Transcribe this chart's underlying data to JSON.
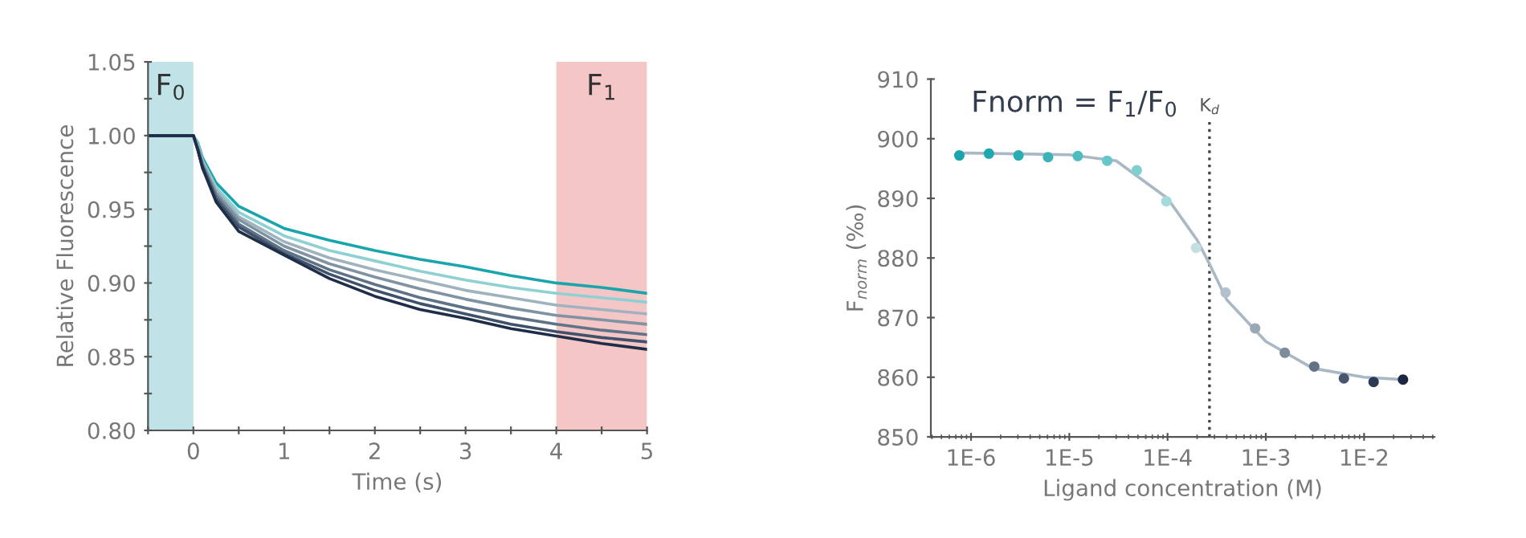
{
  "chart_data": [
    {
      "type": "line",
      "xlabel": "Time (s)",
      "ylabel": "Relative Fluorescence",
      "xlim": [
        -0.5,
        5
      ],
      "ylim": [
        0.8,
        1.05
      ],
      "xticks": [
        {
          "value": -0.5,
          "label": null
        },
        0,
        {
          "value": 0.5,
          "label": null
        },
        1,
        {
          "value": 1.5,
          "label": null
        },
        2,
        {
          "value": 2.5,
          "label": null
        },
        3,
        {
          "value": 3.5,
          "label": null
        },
        4,
        {
          "value": 4.5,
          "label": null
        },
        5
      ],
      "yticks": [
        {
          "value": 0.8,
          "label": "0.80"
        },
        {
          "value": 0.825,
          "label": null
        },
        0.85,
        {
          "value": 0.875,
          "label": null
        },
        {
          "value": 0.9,
          "label": "0.90"
        },
        {
          "value": 0.925,
          "label": null
        },
        0.95,
        {
          "value": 0.975,
          "label": null
        },
        {
          "value": 1,
          "label": "1.00"
        },
        {
          "value": 1.025,
          "label": null
        },
        1.05
      ],
      "x": [
        -0.5,
        0,
        0.05,
        0.1,
        0.25,
        0.5,
        1,
        1.5,
        2,
        2.5,
        3,
        3.5,
        4,
        4.5,
        5
      ],
      "series": [
        {
          "color": "#1aa5ad",
          "values": [
            1,
            1,
            0.995,
            0.985,
            0.968,
            0.952,
            0.937,
            0.929,
            0.922,
            0.916,
            0.911,
            0.905,
            0.9,
            0.897,
            0.893
          ]
        },
        {
          "color": "#8fd0d3",
          "values": [
            1,
            1,
            0.994,
            0.983,
            0.965,
            0.948,
            0.932,
            0.922,
            0.915,
            0.908,
            0.902,
            0.897,
            0.893,
            0.89,
            0.887
          ]
        },
        {
          "color": "#9fb3bf",
          "values": [
            1,
            1,
            0.993,
            0.982,
            0.963,
            0.945,
            0.928,
            0.917,
            0.909,
            0.902,
            0.895,
            0.89,
            0.885,
            0.882,
            0.879
          ]
        },
        {
          "color": "#7f93a3",
          "values": [
            1,
            1,
            0.992,
            0.981,
            0.961,
            0.943,
            0.925,
            0.913,
            0.904,
            0.896,
            0.889,
            0.883,
            0.878,
            0.875,
            0.872
          ]
        },
        {
          "color": "#5f7386",
          "values": [
            1,
            1,
            0.991,
            0.98,
            0.959,
            0.94,
            0.922,
            0.909,
            0.899,
            0.89,
            0.883,
            0.877,
            0.872,
            0.868,
            0.865
          ]
        },
        {
          "color": "#3f526a",
          "values": [
            1,
            1,
            0.99,
            0.979,
            0.957,
            0.938,
            0.92,
            0.906,
            0.895,
            0.886,
            0.879,
            0.872,
            0.867,
            0.863,
            0.86
          ]
        },
        {
          "color": "#1e2e48",
          "values": [
            1,
            1,
            0.99,
            0.978,
            0.955,
            0.935,
            0.919,
            0.903,
            0.891,
            0.882,
            0.876,
            0.869,
            0.864,
            0.859,
            0.855
          ]
        }
      ],
      "bands": [
        {
          "axis": "x",
          "from": -0.5,
          "to": 0,
          "label": "F$_{0}$",
          "color": "#bfe3e6"
        },
        {
          "axis": "x",
          "from": 4,
          "to": 5,
          "label": "F$_{1}$",
          "color": "#f4c6c6"
        }
      ],
      "marker": "none",
      "line_style": "solid",
      "grid": false,
      "legend": false
    },
    {
      "type": "scatter",
      "log": "x",
      "xlabel": "Ligand concentration (M)",
      "ylabel": "F$_{norm}$ (‰)",
      "xlim": [
        3.9e-07,
        0.052
      ],
      "ylim": [
        850,
        910
      ],
      "xticks": [
        {
          "value": 1e-06,
          "label": "1E-6"
        },
        {
          "value": 1e-05,
          "label": "1E-5"
        },
        {
          "value": 0.0001,
          "label": "1E-4"
        },
        {
          "value": 0.001,
          "label": "1E-3"
        },
        {
          "value": 0.01,
          "label": "1E-2"
        }
      ],
      "yticks": [
        850,
        860,
        870,
        880,
        890,
        900,
        910
      ],
      "annotations": [
        "Fnorm = F$_{1}$/F$_{0}$"
      ],
      "series": [
        {
          "type": "scatter",
          "marker": "circle",
          "x": [
            7.6e-07,
            1.52e-06,
            3.04e-06,
            6.08e-06,
            1.22e-05,
            2.43e-05,
            4.86e-05,
            9.73e-05,
            0.000195,
            0.000389,
            0.000778,
            0.00156,
            0.00311,
            0.00623,
            0.0125,
            0.0249
          ],
          "values": [
            897.2,
            897.5,
            897.2,
            896.9,
            897.1,
            896.3,
            894.7,
            889.5,
            881.7,
            874.2,
            868.2,
            864.1,
            861.8,
            859.8,
            859.2,
            859.6
          ],
          "colors": [
            "#1aa5ad",
            "#1fa8b0",
            "#2aacb3",
            "#3ab2b8",
            "#4fbcc1",
            "#66c6ca",
            "#7fcfd2",
            "#a3dbdd",
            "#c3dfe2",
            "#b2c2cc",
            "#98a8b6",
            "#7d8c9c",
            "#627184",
            "#47566c",
            "#2c3b55",
            "#1a2740"
          ]
        },
        {
          "type": "line",
          "marker": "none",
          "color": "#a9b8c4",
          "x": [
            7.6e-07,
            1e-06,
            1e-05,
            3e-05,
            0.0001,
            0.0002,
            0.000267,
            0.0004,
            0.001,
            0.003,
            0.01,
            0.025
          ],
          "values": [
            897.6,
            897.6,
            897.3,
            896.3,
            890,
            883,
            879,
            873,
            866,
            861.5,
            860,
            859.6
          ]
        }
      ],
      "ref_lines": [
        {
          "axis": "x",
          "value": 0.000267,
          "label": "K$_{d}$",
          "color": "#444444",
          "line_style": "dotted"
        }
      ],
      "grid": false,
      "legend": false
    }
  ]
}
